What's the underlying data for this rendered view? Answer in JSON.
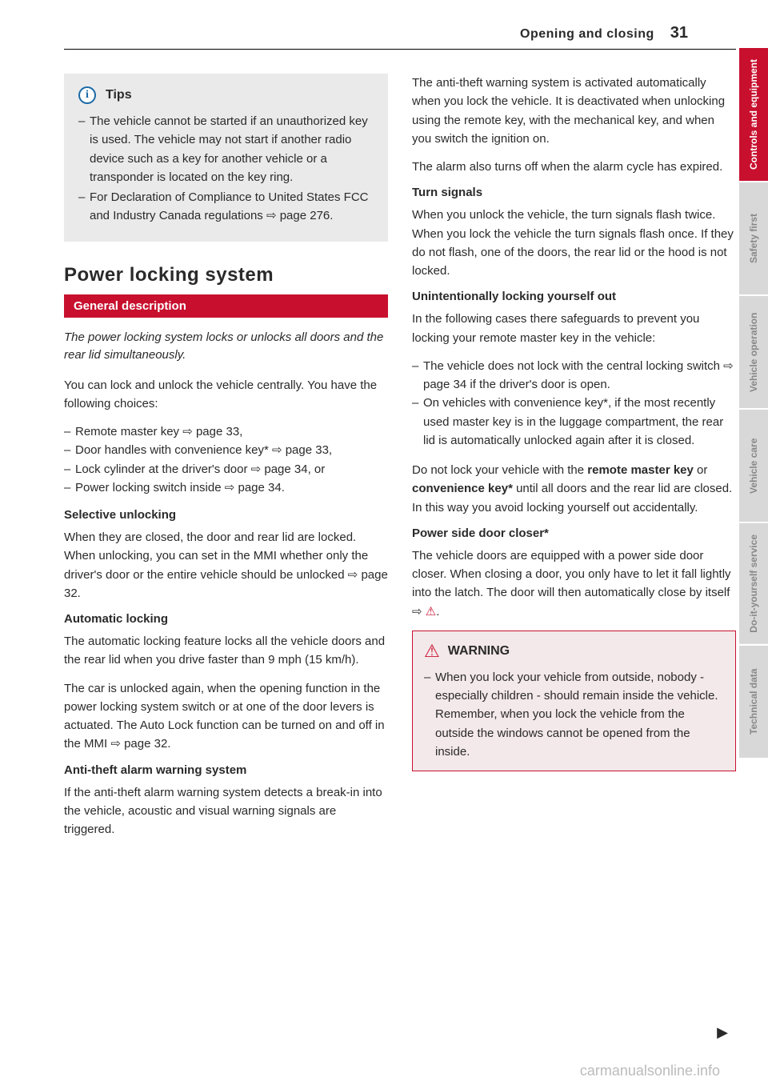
{
  "header": {
    "title": "Opening and closing",
    "page": "31"
  },
  "tips": {
    "icon_label": "i",
    "title": "Tips",
    "items": [
      "The vehicle cannot be started if an unauthorized key is used. The vehicle may not start if another radio device such as a key for another vehicle or a transponder is located on the key ring.",
      "For Declaration of Compliance to United States FCC and Industry Canada regulations ⇨ page 276."
    ]
  },
  "section_title": "Power locking system",
  "red_bar": "General description",
  "intro": "The power locking system locks or unlocks all doors and the rear lid simultaneously.",
  "p1": "You can lock and unlock the vehicle centrally. You have the following choices:",
  "choices": [
    "Remote master key ⇨ page 33,",
    "Door handles with convenience key* ⇨ page 33,",
    "Lock cylinder at the driver's door ⇨ page 34, or",
    "Power locking switch inside ⇨ page 34."
  ],
  "sub1": "Selective unlocking",
  "sub1_body": "When they are closed, the door and rear lid are locked. When unlocking, you can set in the MMI whether only the driver's door or the entire vehicle should be unlocked ⇨ page 32.",
  "sub2": "Automatic locking",
  "sub2_body1": "The automatic locking feature locks all the vehicle doors and the rear lid when you drive faster than 9 mph (15 km/h).",
  "sub2_body2": "The car is unlocked again, when the opening function in the power locking system switch or at one of the door levers is actuated. The Auto Lock function can be turned on and off in the MMI ⇨ page 32.",
  "sub3": "Anti-theft alarm warning system",
  "sub3_body": "If the anti-theft alarm warning system detects a break-in into the vehicle, acoustic and visual warning signals are triggered.",
  "col2_p1": "The anti-theft warning system is activated automatically when you lock the vehicle. It is deactivated when unlocking using the remote key, with the mechanical key, and when you switch the ignition on.",
  "col2_p2": "The alarm also turns off when the alarm cycle has expired.",
  "sub4": "Turn signals",
  "sub4_body": "When you unlock the vehicle, the turn signals flash twice. When you lock the vehicle the turn signals flash once. If they do not flash, one of the doors, the rear lid or the hood is not locked.",
  "sub5": "Unintentionally locking yourself out",
  "sub5_body1": "In the following cases there safeguards to prevent you locking your remote master key in the vehicle:",
  "sub5_list": [
    "The vehicle does not lock with the central locking switch ⇨ page 34 if the driver's door is open.",
    "On vehicles with convenience key*, if the most recently used master key is in the luggage compartment, the rear lid is automatically unlocked again after it is closed."
  ],
  "sub5_body2a": "Do not lock your vehicle with the ",
  "sub5_body2b": "remote master key",
  "sub5_body2c": " or ",
  "sub5_body2d": "convenience key*",
  "sub5_body2e": " until all doors and the rear lid are closed. In this way you avoid locking yourself out accidentally.",
  "sub6": "Power side door closer*",
  "sub6_body": "The vehicle doors are equipped with a power side door closer. When closing a door, you only have to let it fall lightly into the latch. The door will then automatically close by itself ⇨ ",
  "warning": {
    "title": "WARNING",
    "items": [
      "When you lock your vehicle from outside, nobody - especially children - should remain inside the vehicle. Remember, when you lock the vehicle from the outside the windows cannot be opened from the inside."
    ]
  },
  "tabs": [
    {
      "label": "Controls and equipment",
      "active": true
    },
    {
      "label": "Safety first",
      "active": false
    },
    {
      "label": "Vehicle operation",
      "active": false
    },
    {
      "label": "Vehicle care",
      "active": false
    },
    {
      "label": "Do-it-yourself service",
      "active": false
    },
    {
      "label": "Technical data",
      "active": false
    }
  ],
  "watermark": "carmanualsonline.info",
  "colors": {
    "accent_red": "#c8102e",
    "info_blue": "#1a6aa8",
    "tips_bg": "#eaeaea",
    "tab_inactive_bg": "#d8d8d8",
    "tab_inactive_fg": "#888888",
    "warning_bg": "#f3e8ea"
  }
}
